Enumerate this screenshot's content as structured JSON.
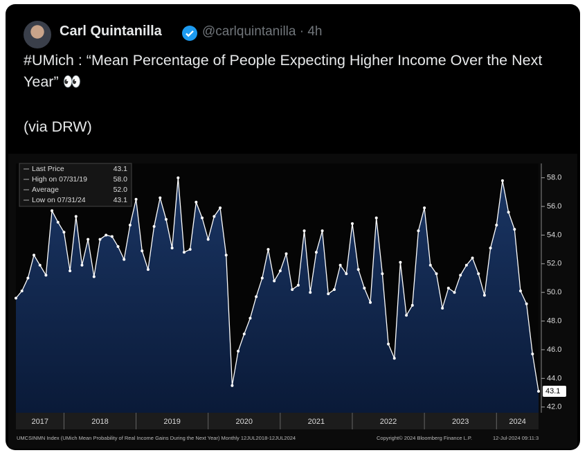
{
  "tweet": {
    "author": "Carl Quintanilla",
    "handle": "@carlquintanilla · 4h",
    "text": "#UMich : “Mean Percentage of People Expecting Higher Income Over the Next Year” 👀",
    "via": "(via DRW)"
  },
  "chart_data": {
    "type": "line",
    "legend": [
      {
        "label": "Last Price",
        "value": "43.1"
      },
      {
        "label": "High on 07/31/19",
        "value": "58.0"
      },
      {
        "label": "Average",
        "value": "52.0"
      },
      {
        "label": "Low on 07/31/24",
        "value": "43.1"
      }
    ],
    "last_price_tag": "43.1",
    "year_labels": [
      "2017",
      "2018",
      "2019",
      "2020",
      "2021",
      "2022",
      "2023",
      "2024"
    ],
    "footer_left": "UMCSINMN Index (UMich Mean Probability of Real Income Gains During the Next Year) Monthly 12JUL2018-12JUL2024",
    "footer_mid": "Copyright© 2024 Bloomberg Finance L.P.",
    "footer_right": "12-Jul-2024 09:11:3",
    "series": [
      {
        "color": "#ffffff",
        "values": [
          49.6,
          50.1,
          51.0,
          52.6,
          51.9,
          51.2,
          55.7,
          54.9,
          54.2,
          51.5,
          55.3,
          51.9,
          53.7,
          51.1,
          53.7,
          54.0,
          53.9,
          53.2,
          52.3,
          54.7,
          56.5,
          52.9,
          51.6,
          54.6,
          56.6,
          55.1,
          53.1,
          58.0,
          52.8,
          53.0,
          56.3,
          55.2,
          53.7,
          55.3,
          55.9,
          52.6,
          43.5,
          45.9,
          47.1,
          48.2,
          49.7,
          51.0,
          53.0,
          50.8,
          51.5,
          52.7,
          50.2,
          50.5,
          54.3,
          50.0,
          52.8,
          54.3,
          49.9,
          50.2,
          51.9,
          51.3,
          54.8,
          51.6,
          50.3,
          49.3,
          55.2,
          51.3,
          46.4,
          45.4,
          52.1,
          48.4,
          49.1,
          54.3,
          55.9,
          51.9,
          51.3,
          48.9,
          50.3,
          50.0,
          51.2,
          51.9,
          52.4,
          51.3,
          49.8,
          53.1,
          54.7,
          57.8,
          55.6,
          54.4,
          50.1,
          49.2,
          45.7,
          43.1
        ]
      }
    ],
    "ylim": [
      41.6,
      59.0
    ],
    "yticks": [
      {
        "value": 42,
        "label": "42.0"
      },
      {
        "value": 44,
        "label": "44.0"
      },
      {
        "value": 46,
        "label": "46.0"
      },
      {
        "value": 48,
        "label": "48.0"
      },
      {
        "value": 50,
        "label": "50.0"
      },
      {
        "value": 52,
        "label": "52.0"
      },
      {
        "value": 54,
        "label": "54.0"
      },
      {
        "value": 56,
        "label": "56.0"
      },
      {
        "value": 58,
        "label": "58.0"
      }
    ],
    "grid": false
  }
}
